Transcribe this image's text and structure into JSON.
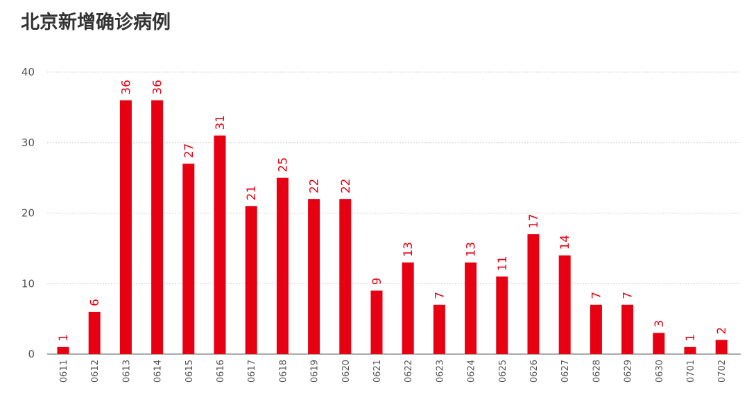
{
  "title": "北京新增确诊病例",
  "colors": {
    "bar": "#e60012",
    "label": "#e60012",
    "grid": "#cfcfcf",
    "text": "#555555"
  },
  "chart_data": {
    "type": "bar",
    "title": "北京新增确诊病例",
    "categories": [
      "0611",
      "0612",
      "0613",
      "0614",
      "0615",
      "0616",
      "0617",
      "0618",
      "0619",
      "0620",
      "0621",
      "0622",
      "0623",
      "0624",
      "0625",
      "0626",
      "0627",
      "0628",
      "0629",
      "0630",
      "0701",
      "0702"
    ],
    "values": [
      1,
      6,
      36,
      36,
      27,
      31,
      21,
      25,
      22,
      22,
      9,
      13,
      7,
      13,
      11,
      17,
      14,
      7,
      7,
      3,
      1,
      2
    ],
    "ylim": [
      0,
      40
    ],
    "yticks": [
      0,
      10,
      20,
      30,
      40
    ],
    "grid": true,
    "data_labels": true,
    "x_tick_rotation": "vertical"
  }
}
